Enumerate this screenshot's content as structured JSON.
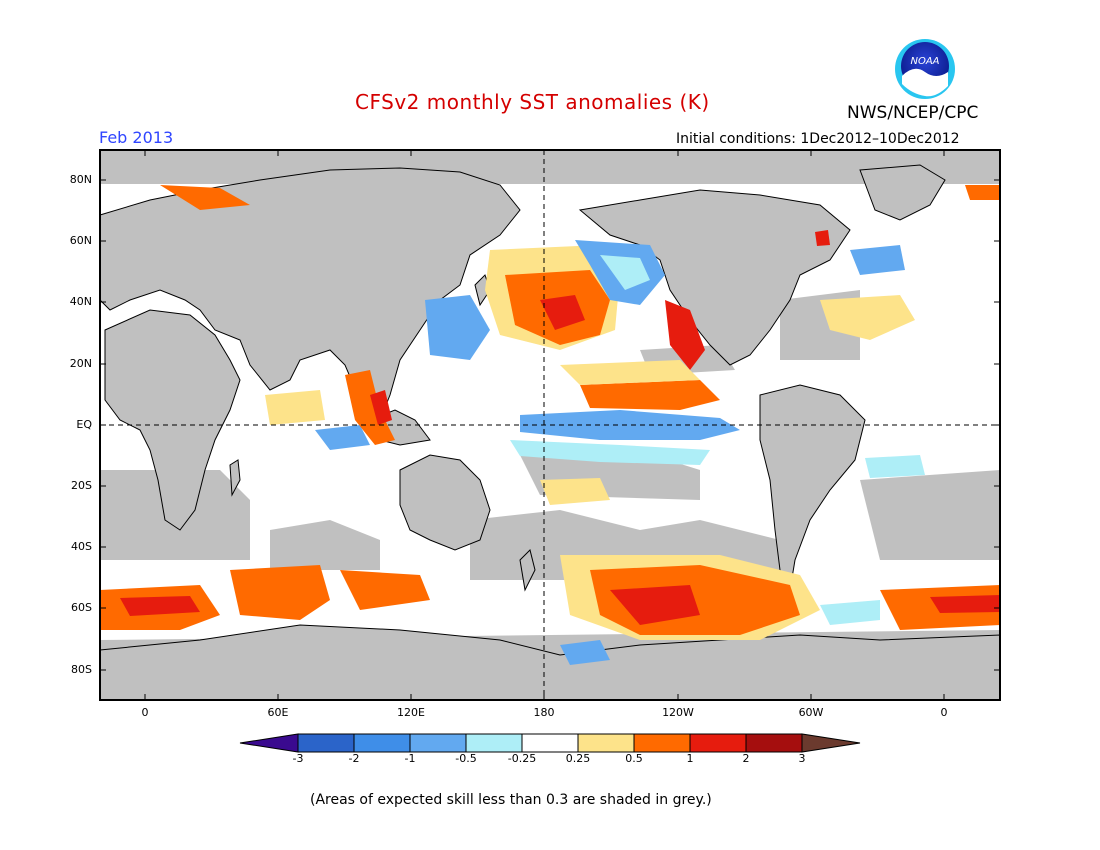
{
  "header": {
    "title": "CFSv2 monthly SST anomalies (K)",
    "valid_month": "Feb 2013",
    "initial_conditions": "Initial conditions: 1Dec2012–10Dec2012",
    "organization": "NWS/NCEP/CPC",
    "logo_text": "NOAA"
  },
  "map": {
    "projection": "cylindrical equidistant",
    "lat_labels": [
      "80N",
      "60N",
      "40N",
      "20N",
      "EQ",
      "20S",
      "40S",
      "60S",
      "80S"
    ],
    "lon_labels": [
      "0",
      "60E",
      "120E",
      "180",
      "120W",
      "60W",
      "0"
    ],
    "reference_lines": [
      "EQ",
      "180"
    ],
    "land_color": "#c0c0c0",
    "low_skill_color": "#c0c0c0"
  },
  "colorbar": {
    "tick_labels": [
      "-3",
      "-2",
      "-1",
      "-0.5",
      "-0.25",
      "0.25",
      "0.5",
      "1",
      "2",
      "3"
    ],
    "colors": [
      "#3a0a8f",
      "#2b64c9",
      "#3f8ee8",
      "#62a9f0",
      "#aeeef7",
      "#ffffff",
      "#fde38a",
      "#ff6a00",
      "#e61c0e",
      "#a50e0e",
      "#6b3a2e"
    ]
  },
  "footnote": "(Areas of expected skill less than 0.3 are shaded in grey.)"
}
